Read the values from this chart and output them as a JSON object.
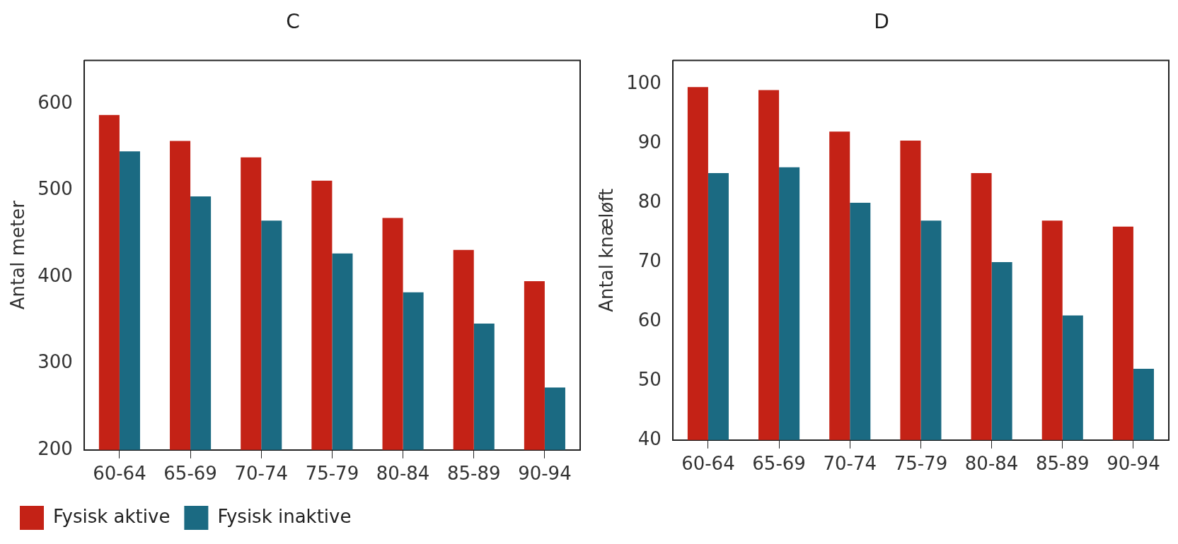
{
  "chart_data": [
    {
      "type": "bar",
      "title": "C",
      "ylabel": "Antal meter",
      "categories": [
        "60-64",
        "65-69",
        "70-74",
        "75-79",
        "80-84",
        "85-89",
        "90-94"
      ],
      "series": [
        {
          "name": "Fysisk aktive",
          "color": "#c42216",
          "values": [
            587,
            557,
            538,
            511,
            468,
            431,
            395
          ]
        },
        {
          "name": "Fysisk inaktive",
          "color": "#1b6a82",
          "values": [
            545,
            493,
            465,
            427,
            382,
            346,
            272
          ]
        }
      ],
      "ylim": [
        200,
        650
      ],
      "yticks": [
        200,
        300,
        400,
        500,
        600
      ],
      "grid": false,
      "legend": "bottom left"
    },
    {
      "type": "bar",
      "title": "D",
      "ylabel": "Antal knæløft",
      "categories": [
        "60-64",
        "65-69",
        "70-74",
        "75-79",
        "80-84",
        "85-89",
        "90-94"
      ],
      "series": [
        {
          "color": "#c42216",
          "values": [
            99.5,
            99,
            92,
            90.5,
            85,
            77,
            76
          ]
        },
        {
          "color": "#1b6a82",
          "values": [
            85,
            86,
            80,
            77,
            70,
            61,
            52
          ]
        }
      ],
      "ylim": [
        40,
        104
      ],
      "yticks": [
        40,
        50,
        60,
        70,
        80,
        90,
        100
      ],
      "grid": false
    }
  ]
}
